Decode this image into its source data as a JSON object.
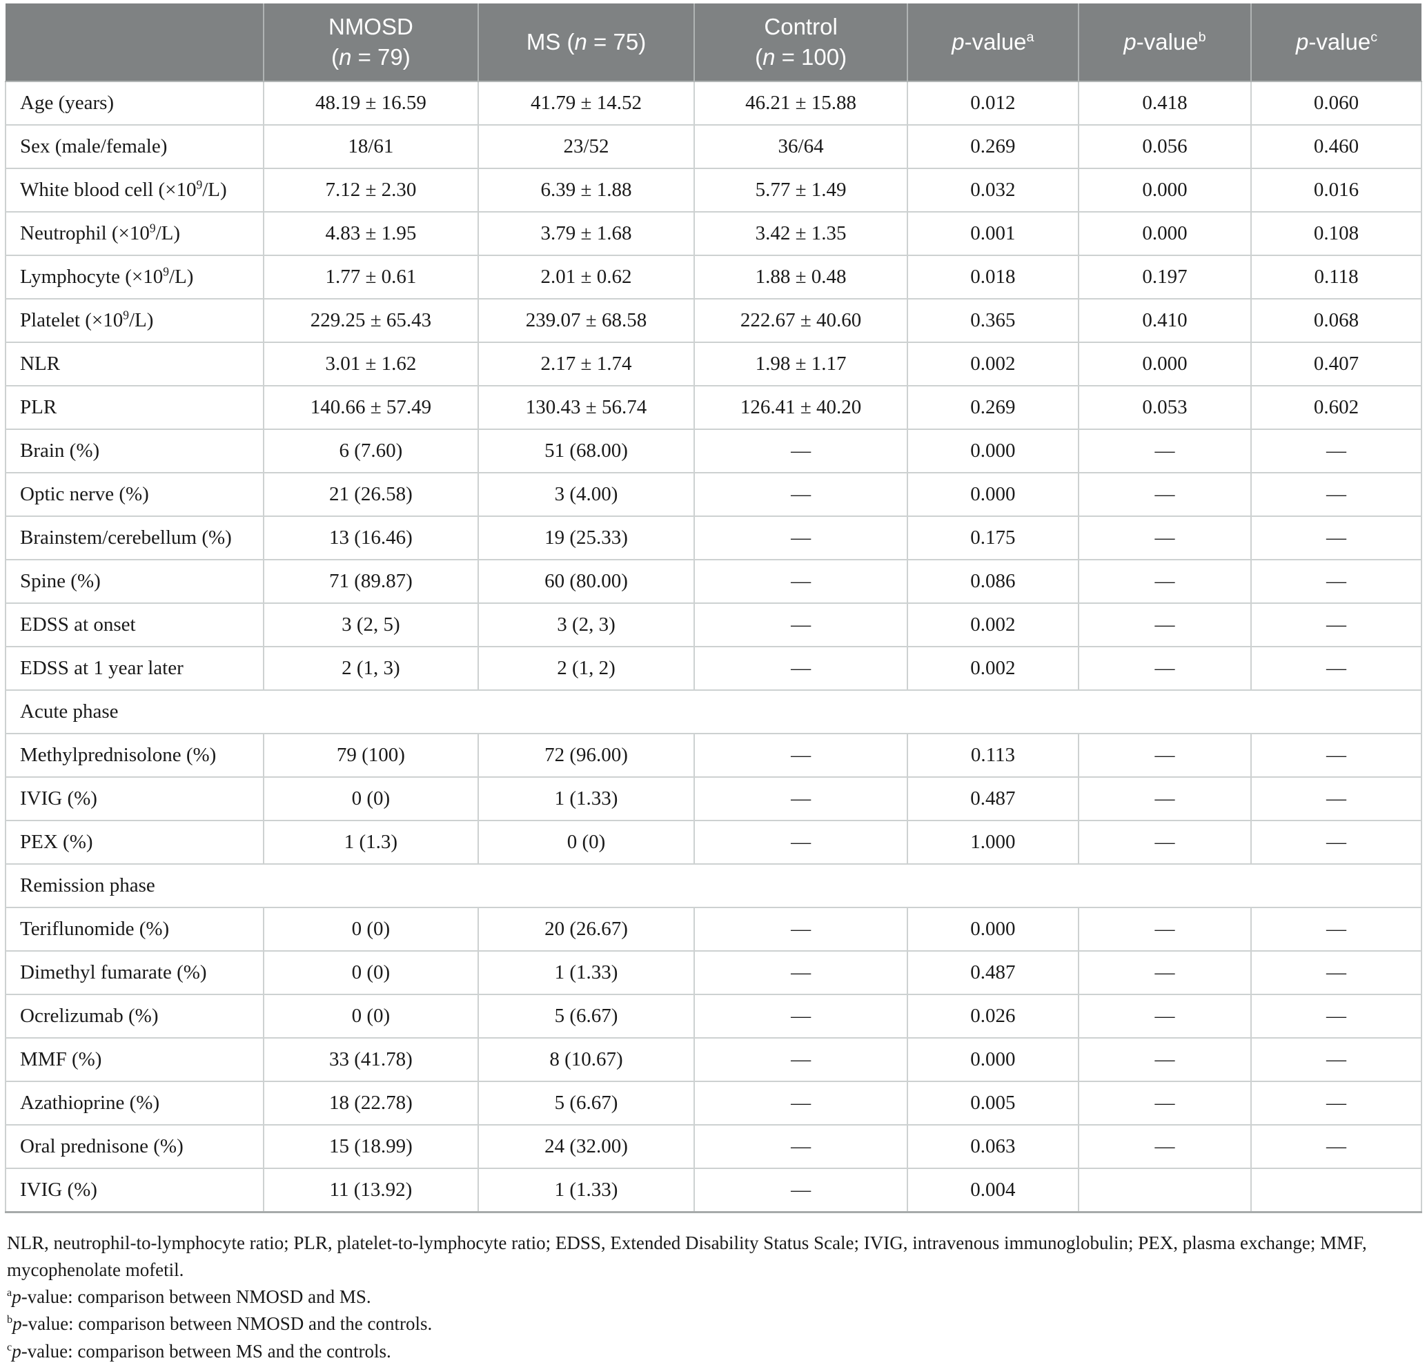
{
  "table": {
    "columns": [
      {
        "id": "label",
        "label": ""
      },
      {
        "id": "nmosd",
        "label": "NMOSD\n(*n* = 79)"
      },
      {
        "id": "ms",
        "label": "MS (*n* = 75)"
      },
      {
        "id": "control",
        "label": "Control\n(*n* = 100)"
      },
      {
        "id": "p-a",
        "label": "*p*-value^{a}"
      },
      {
        "id": "p-b",
        "label": "*p*-value^{b}"
      },
      {
        "id": "p-c",
        "label": "*p*-value^{c}"
      }
    ],
    "rows": [
      {
        "type": "data",
        "label": "Age (years)",
        "cells": [
          "48.19 ± 16.59",
          "41.79 ± 14.52",
          "46.21 ± 15.88",
          "0.012",
          "0.418",
          "0.060"
        ]
      },
      {
        "type": "data",
        "label": "Sex (male/female)",
        "cells": [
          "18/61",
          "23/52",
          "36/64",
          "0.269",
          "0.056",
          "0.460"
        ]
      },
      {
        "type": "data",
        "label": "White blood cell (×10^{9}/L)",
        "cells": [
          "7.12 ± 2.30",
          "6.39 ± 1.88",
          "5.77 ± 1.49",
          "0.032",
          "0.000",
          "0.016"
        ]
      },
      {
        "type": "data",
        "label": "Neutrophil (×10^{9}/L)",
        "cells": [
          "4.83 ± 1.95",
          "3.79 ± 1.68",
          "3.42 ± 1.35",
          "0.001",
          "0.000",
          "0.108"
        ]
      },
      {
        "type": "data",
        "label": "Lymphocyte (×10^{9}/L)",
        "cells": [
          "1.77 ± 0.61",
          "2.01 ± 0.62",
          "1.88 ± 0.48",
          "0.018",
          "0.197",
          "0.118"
        ]
      },
      {
        "type": "data",
        "label": "Platelet (×10^{9}/L)",
        "cells": [
          "229.25 ± 65.43",
          "239.07 ± 68.58",
          "222.67 ± 40.60",
          "0.365",
          "0.410",
          "0.068"
        ]
      },
      {
        "type": "data",
        "label": "NLR",
        "cells": [
          "3.01 ± 1.62",
          "2.17 ± 1.74",
          "1.98 ± 1.17",
          "0.002",
          "0.000",
          "0.407"
        ]
      },
      {
        "type": "data",
        "label": "PLR",
        "cells": [
          "140.66 ± 57.49",
          "130.43 ± 56.74",
          "126.41 ± 40.20",
          "0.269",
          "0.053",
          "0.602"
        ]
      },
      {
        "type": "data",
        "label": "Brain (%)",
        "cells": [
          "6 (7.60)",
          "51 (68.00)",
          "—",
          "0.000",
          "—",
          "—"
        ]
      },
      {
        "type": "data",
        "label": "Optic nerve (%)",
        "cells": [
          "21 (26.58)",
          "3 (4.00)",
          "—",
          "0.000",
          "—",
          "—"
        ]
      },
      {
        "type": "data",
        "label": "Brainstem/cerebellum (%)",
        "cells": [
          "13 (16.46)",
          "19 (25.33)",
          "—",
          "0.175",
          "—",
          "—"
        ]
      },
      {
        "type": "data",
        "label": "Spine (%)",
        "cells": [
          "71 (89.87)",
          "60 (80.00)",
          "—",
          "0.086",
          "—",
          "—"
        ]
      },
      {
        "type": "data",
        "label": "EDSS at onset",
        "cells": [
          "3 (2, 5)",
          "3 (2, 3)",
          "—",
          "0.002",
          "—",
          "—"
        ]
      },
      {
        "type": "data",
        "label": "EDSS at 1 year later",
        "cells": [
          "2 (1, 3)",
          "2 (1, 2)",
          "—",
          "0.002",
          "—",
          "—"
        ]
      },
      {
        "type": "section",
        "label": "Acute phase"
      },
      {
        "type": "data",
        "label": "Methylprednisolone (%)",
        "cells": [
          "79 (100)",
          "72 (96.00)",
          "—",
          "0.113",
          "—",
          "—"
        ]
      },
      {
        "type": "data",
        "label": "IVIG (%)",
        "cells": [
          "0 (0)",
          "1 (1.33)",
          "—",
          "0.487",
          "—",
          "—"
        ]
      },
      {
        "type": "data",
        "label": "PEX (%)",
        "cells": [
          "1 (1.3)",
          "0 (0)",
          "—",
          "1.000",
          "—",
          "—"
        ]
      },
      {
        "type": "section",
        "label": "Remission phase"
      },
      {
        "type": "data",
        "label": "Teriflunomide (%)",
        "cells": [
          "0 (0)",
          "20 (26.67)",
          "—",
          "0.000",
          "—",
          "—"
        ]
      },
      {
        "type": "data",
        "label": "Dimethyl fumarate (%)",
        "cells": [
          "0 (0)",
          "1 (1.33)",
          "—",
          "0.487",
          "—",
          "—"
        ]
      },
      {
        "type": "data",
        "label": "Ocrelizumab (%)",
        "cells": [
          "0 (0)",
          "5 (6.67)",
          "—",
          "0.026",
          "—",
          "—"
        ]
      },
      {
        "type": "data",
        "label": "MMF (%)",
        "cells": [
          "33 (41.78)",
          "8 (10.67)",
          "—",
          "0.000",
          "—",
          "—"
        ]
      },
      {
        "type": "data",
        "label": "Azathioprine (%)",
        "cells": [
          "18 (22.78)",
          "5 (6.67)",
          "—",
          "0.005",
          "—",
          "—"
        ]
      },
      {
        "type": "data",
        "label": "Oral prednisone (%)",
        "cells": [
          "15 (18.99)",
          "24 (32.00)",
          "—",
          "0.063",
          "—",
          "—"
        ]
      },
      {
        "type": "data",
        "label": "IVIG (%)",
        "cells": [
          "11 (13.92)",
          "1 (1.33)",
          "—",
          "0.004",
          "",
          ""
        ]
      }
    ]
  },
  "footnotes": [
    "NLR, neutrophil-to-lymphocyte ratio; PLR, platelet-to-lymphocyte ratio; EDSS, Extended Disability Status Scale; IVIG, intravenous immunoglobulin; PEX, plasma exchange; MMF, mycophenolate mofetil.",
    "^{a}*p*-value: comparison between NMOSD and MS.",
    "^{b}*p*-value: comparison between NMOSD and the controls.",
    "^{c}*p*-value: comparison between MS and the controls."
  ],
  "colors": {
    "header_bg": "#7f8283",
    "header_text": "#ffffff",
    "body_text": "#1a1a1a",
    "grid_line": "#cdd1d1"
  }
}
